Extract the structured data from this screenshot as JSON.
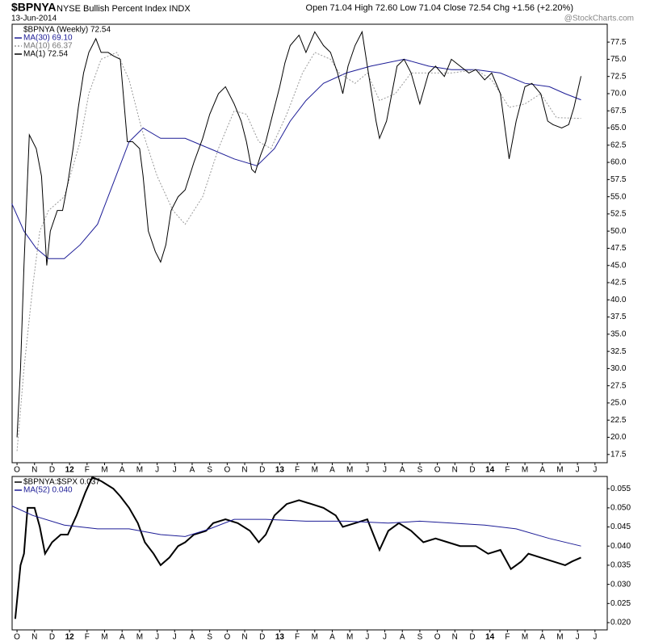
{
  "chart_data": [
    {
      "type": "line",
      "title": "$BPNYA",
      "subtitle": "NYSE Bullish Percent Index  INDX",
      "date": "13-Jun-2014",
      "quote": "Open 71.04  High 72.60  Low 71.04  Close 72.54  Chg +1.56 (+2.20%)",
      "watermark": "@StockCharts.com",
      "legend_title": "$BPNYA (Weekly) 72.54",
      "xlim": [
        -0.28,
        33.7
      ],
      "xticks": [
        {
          "value": 0,
          "label": "O"
        },
        {
          "value": 1,
          "label": "N"
        },
        {
          "value": 2,
          "label": "D"
        },
        {
          "value": 3,
          "label": "12"
        },
        {
          "value": 4,
          "label": "F"
        },
        {
          "value": 5,
          "label": "M"
        },
        {
          "value": 6,
          "label": "A"
        },
        {
          "value": 7,
          "label": "M"
        },
        {
          "value": 8,
          "label": "J"
        },
        {
          "value": 9,
          "label": "J"
        },
        {
          "value": 10,
          "label": "A"
        },
        {
          "value": 11,
          "label": "S"
        },
        {
          "value": 12,
          "label": "O"
        },
        {
          "value": 13,
          "label": "N"
        },
        {
          "value": 14,
          "label": "D"
        },
        {
          "value": 15,
          "label": "13"
        },
        {
          "value": 16,
          "label": "F"
        },
        {
          "value": 17,
          "label": "M"
        },
        {
          "value": 18,
          "label": "A"
        },
        {
          "value": 19,
          "label": "M"
        },
        {
          "value": 20,
          "label": "J"
        },
        {
          "value": 21,
          "label": "J"
        },
        {
          "value": 22,
          "label": "A"
        },
        {
          "value": 23,
          "label": "S"
        },
        {
          "value": 24,
          "label": "O"
        },
        {
          "value": 25,
          "label": "N"
        },
        {
          "value": 26,
          "label": "D"
        },
        {
          "value": 27,
          "label": "14"
        },
        {
          "value": 28,
          "label": "F"
        },
        {
          "value": 29,
          "label": "M"
        },
        {
          "value": 30,
          "label": "A"
        },
        {
          "value": 31,
          "label": "M"
        },
        {
          "value": 32,
          "label": "J"
        },
        {
          "value": 33,
          "label": "J"
        }
      ],
      "ylim": [
        16.3,
        80.1
      ],
      "yticks": [
        17.5,
        {
          "value": 20,
          "label": "20.0"
        },
        22.5,
        {
          "value": 25,
          "label": "25.0"
        },
        27.5,
        {
          "value": 30,
          "label": "30.0"
        },
        32.5,
        {
          "value": 35,
          "label": "35.0"
        },
        37.5,
        {
          "value": 40,
          "label": "40.0"
        },
        42.5,
        {
          "value": 45,
          "label": "45.0"
        },
        47.5,
        {
          "value": 50,
          "label": "50.0"
        },
        52.5,
        {
          "value": 55,
          "label": "55.0"
        },
        57.5,
        {
          "value": 60,
          "label": "60.0"
        },
        62.5,
        {
          "value": 65,
          "label": "65.0"
        },
        67.5,
        {
          "value": 70,
          "label": "70.0"
        },
        72.5,
        {
          "value": 75,
          "label": "75.0"
        },
        77.5
      ],
      "series": [
        {
          "name": "MA(30) 69.10",
          "color": "#1c1c96",
          "style": "solid",
          "x": [
            -0.3,
            0.4,
            1.1,
            1.8,
            2.7,
            3.6,
            4.6,
            5.5,
            6.4,
            7.2,
            8.2,
            9.6,
            11.0,
            12.4,
            13.7,
            14.7,
            15.6,
            16.5,
            17.5,
            18.8,
            20.2,
            22.1,
            23.5,
            24.8,
            26.2,
            27.6,
            29.0,
            30.4,
            31.3,
            32.2
          ],
          "values": [
            54,
            50,
            47.5,
            46,
            46,
            48,
            51,
            57,
            63,
            65,
            63.5,
            63.5,
            62,
            60.5,
            59.5,
            62,
            66,
            69,
            71.5,
            73,
            74,
            75,
            74,
            73.5,
            73.5,
            73,
            71.5,
            71,
            70,
            69.1
          ]
        },
        {
          "name": "MA(10) 66.37",
          "color": "#999999",
          "style": "dotted",
          "x": [
            0.0,
            0.4,
            0.9,
            1.3,
            1.8,
            2.7,
            3.6,
            4.1,
            4.8,
            5.7,
            6.4,
            7.1,
            8.0,
            8.9,
            9.6,
            10.6,
            11.5,
            12.4,
            13.1,
            13.8,
            14.5,
            15.4,
            16.3,
            17.0,
            17.9,
            18.4,
            19.3,
            20.0,
            20.7,
            21.6,
            22.5,
            23.5,
            24.8,
            26.2,
            27.1,
            28.1,
            29.0,
            29.9,
            30.8,
            32.2
          ],
          "values": [
            18,
            30,
            42,
            50,
            53,
            55,
            63,
            70,
            75,
            76,
            72,
            65,
            58,
            53,
            51,
            55,
            62,
            67.5,
            67,
            63,
            62,
            67,
            73,
            76,
            75,
            73,
            71.5,
            73,
            69,
            70,
            73,
            73,
            73,
            73.5,
            72,
            68,
            68.5,
            70,
            66.5,
            66.4
          ]
        },
        {
          "name": "MA(1) 72.54",
          "color": "#000000",
          "style": "solid",
          "x": [
            0,
            0.2,
            0.4,
            0.7,
            1.1,
            1.4,
            1.7,
            1.9,
            2.3,
            2.6,
            2.9,
            3.2,
            3.5,
            3.8,
            4.1,
            4.5,
            4.8,
            5.2,
            5.5,
            5.9,
            6.3,
            6.6,
            7.0,
            7.2,
            7.5,
            7.9,
            8.2,
            8.5,
            8.8,
            9.2,
            9.6,
            10.1,
            10.6,
            11.0,
            11.5,
            11.9,
            12.4,
            12.8,
            13.1,
            13.4,
            13.6,
            13.9,
            14.2,
            14.6,
            15.0,
            15.3,
            15.6,
            16.1,
            16.5,
            17.0,
            17.5,
            17.9,
            18.3,
            18.6,
            18.9,
            19.3,
            19.7,
            20.0,
            20.5,
            20.7,
            21.1,
            21.4,
            21.7,
            22.1,
            22.5,
            23.0,
            23.5,
            23.9,
            24.4,
            24.8,
            25.3,
            25.8,
            26.2,
            26.7,
            27.1,
            27.6,
            28.1,
            28.5,
            29.0,
            29.4,
            29.9,
            30.3,
            30.6,
            31.1,
            31.5,
            31.8,
            32.2
          ],
          "values": [
            20,
            30,
            45,
            64,
            62,
            58,
            45,
            50,
            53,
            53,
            57,
            62,
            68,
            73,
            76,
            78,
            76,
            76,
            75.5,
            75,
            63,
            63,
            62,
            58,
            50,
            47,
            45.5,
            48,
            53,
            55,
            56,
            60,
            63.5,
            67,
            70,
            71,
            68.5,
            66,
            63,
            59,
            58.5,
            61,
            63,
            67,
            71,
            74.5,
            77,
            78.5,
            76,
            79,
            77,
            76,
            73,
            70,
            74,
            77,
            79,
            74,
            66,
            63.5,
            66,
            70,
            74,
            75,
            73,
            68.5,
            73,
            74,
            72.5,
            75,
            74,
            73,
            73.5,
            72,
            73,
            70,
            60.5,
            66,
            71,
            71.5,
            70,
            66,
            65.5,
            65,
            65.5,
            68,
            72.54
          ]
        }
      ]
    },
    {
      "type": "line",
      "xlim": [
        -0.28,
        33.7
      ],
      "xticks": [
        {
          "value": 0,
          "label": "O"
        },
        {
          "value": 1,
          "label": "N"
        },
        {
          "value": 2,
          "label": "D"
        },
        {
          "value": 3,
          "label": "12"
        },
        {
          "value": 4,
          "label": "F"
        },
        {
          "value": 5,
          "label": "M"
        },
        {
          "value": 6,
          "label": "A"
        },
        {
          "value": 7,
          "label": "M"
        },
        {
          "value": 8,
          "label": "J"
        },
        {
          "value": 9,
          "label": "J"
        },
        {
          "value": 10,
          "label": "A"
        },
        {
          "value": 11,
          "label": "S"
        },
        {
          "value": 12,
          "label": "O"
        },
        {
          "value": 13,
          "label": "N"
        },
        {
          "value": 14,
          "label": "D"
        },
        {
          "value": 15,
          "label": "13"
        },
        {
          "value": 16,
          "label": "F"
        },
        {
          "value": 17,
          "label": "M"
        },
        {
          "value": 18,
          "label": "A"
        },
        {
          "value": 19,
          "label": "M"
        },
        {
          "value": 20,
          "label": "J"
        },
        {
          "value": 21,
          "label": "J"
        },
        {
          "value": 22,
          "label": "A"
        },
        {
          "value": 23,
          "label": "S"
        },
        {
          "value": 24,
          "label": "O"
        },
        {
          "value": 25,
          "label": "N"
        },
        {
          "value": 26,
          "label": "D"
        },
        {
          "value": 27,
          "label": "14"
        },
        {
          "value": 28,
          "label": "F"
        },
        {
          "value": 29,
          "label": "M"
        },
        {
          "value": 30,
          "label": "A"
        },
        {
          "value": 31,
          "label": "M"
        },
        {
          "value": 32,
          "label": "J"
        },
        {
          "value": 33,
          "label": "J"
        }
      ],
      "ylim": [
        0.0181,
        0.0582
      ],
      "yticks": [
        {
          "value": 0.02,
          "label": "0.020"
        },
        0.025,
        {
          "value": 0.03,
          "label": "0.030"
        },
        0.035,
        {
          "value": 0.04,
          "label": "0.040"
        },
        0.045,
        {
          "value": 0.05,
          "label": "0.050"
        },
        0.055
      ],
      "series": [
        {
          "name": "$BPNYA:$SPX 0.037",
          "color": "#000000",
          "style": "solid",
          "width": 2,
          "x": [
            -0.1,
            0.2,
            0.4,
            0.6,
            1.0,
            1.3,
            1.6,
            2.0,
            2.5,
            2.9,
            3.4,
            3.9,
            4.3,
            4.8,
            5.5,
            5.9,
            6.4,
            6.9,
            7.3,
            7.8,
            8.2,
            8.7,
            9.2,
            9.6,
            10.1,
            10.8,
            11.2,
            11.9,
            12.6,
            13.3,
            13.8,
            14.2,
            14.7,
            15.4,
            16.1,
            16.8,
            17.5,
            18.2,
            18.6,
            19.3,
            20.0,
            20.7,
            21.2,
            21.8,
            22.5,
            23.2,
            23.9,
            24.6,
            25.3,
            26.2,
            26.9,
            27.6,
            28.2,
            28.8,
            29.2,
            29.9,
            30.6,
            31.3,
            31.7,
            32.2
          ],
          "values": [
            0.021,
            0.035,
            0.038,
            0.05,
            0.05,
            0.045,
            0.038,
            0.041,
            0.043,
            0.043,
            0.048,
            0.054,
            0.058,
            0.057,
            0.055,
            0.053,
            0.05,
            0.046,
            0.041,
            0.038,
            0.035,
            0.037,
            0.04,
            0.041,
            0.043,
            0.044,
            0.046,
            0.047,
            0.046,
            0.044,
            0.041,
            0.043,
            0.048,
            0.051,
            0.052,
            0.051,
            0.05,
            0.048,
            0.045,
            0.046,
            0.047,
            0.039,
            0.044,
            0.046,
            0.044,
            0.041,
            0.042,
            0.041,
            0.04,
            0.04,
            0.038,
            0.039,
            0.034,
            0.036,
            0.038,
            0.037,
            0.036,
            0.035,
            0.036,
            0.037
          ]
        },
        {
          "name": "MA(52) 0.040",
          "color": "#1c1c96",
          "style": "solid",
          "width": 1,
          "x": [
            -0.3,
            0.9,
            2.7,
            4.6,
            6.4,
            8.2,
            9.6,
            11.0,
            12.4,
            14.2,
            16.5,
            18.8,
            21.2,
            23.0,
            24.8,
            26.7,
            28.5,
            30.4,
            32.2
          ],
          "values": [
            0.0505,
            0.048,
            0.0455,
            0.0445,
            0.0445,
            0.043,
            0.0425,
            0.0445,
            0.047,
            0.047,
            0.0465,
            0.0465,
            0.046,
            0.0465,
            0.046,
            0.0455,
            0.0445,
            0.042,
            0.04
          ]
        }
      ]
    }
  ]
}
